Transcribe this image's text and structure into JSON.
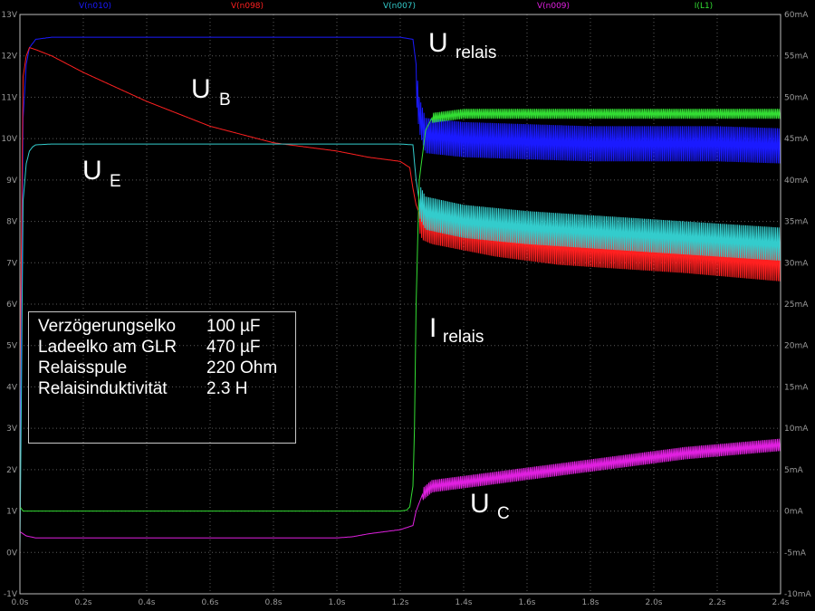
{
  "chart_data": {
    "type": "line",
    "title": "",
    "xlabel": "",
    "ylabel": "",
    "xlim": [
      0,
      2.4
    ],
    "ylim": [
      -1,
      13
    ],
    "y2lim": [
      -10,
      60
    ],
    "x_ticks": [
      "0.0s",
      "0.2s",
      "0.4s",
      "0.6s",
      "0.8s",
      "1.0s",
      "1.2s",
      "1.4s",
      "1.6s",
      "1.8s",
      "2.0s",
      "2.2s",
      "2.4s"
    ],
    "y_ticks": [
      "-1V",
      "0V",
      "1V",
      "2V",
      "3V",
      "4V",
      "5V",
      "6V",
      "7V",
      "8V",
      "9V",
      "10V",
      "11V",
      "12V",
      "13V"
    ],
    "y2_ticks": [
      "-10mA",
      "-5mA",
      "0mA",
      "5mA",
      "10mA",
      "15mA",
      "20mA",
      "25mA",
      "30mA",
      "35mA",
      "40mA",
      "45mA",
      "50mA",
      "55mA",
      "60mA"
    ],
    "grid": true,
    "legend_header": [
      "V(n010)",
      "V(n098)",
      "V(n007)",
      "V(n009)",
      "I(L1)"
    ],
    "series": [
      {
        "name": "V(n010)",
        "color": "#1a1aff",
        "axis": "left",
        "x": [
          0,
          0.01,
          0.02,
          0.03,
          0.05,
          0.1,
          0.3,
          0.6,
          1.0,
          1.2,
          1.24,
          1.25,
          1.26,
          1.28,
          1.4,
          1.6,
          1.8,
          2.0,
          2.2,
          2.4
        ],
        "y": [
          1.0,
          10.5,
          11.8,
          12.2,
          12.4,
          12.45,
          12.45,
          12.45,
          12.45,
          12.45,
          12.4,
          11.8,
          11.0,
          10.5,
          10.4,
          10.35,
          10.3,
          10.3,
          10.3,
          10.25
        ],
        "ripple_after": 1.25,
        "ripple_min": [
          10.0,
          10.0,
          10.0,
          10.0,
          10.0,
          10.0
        ],
        "ripple_max_offset": 0.85
      },
      {
        "name": "V(n098)",
        "color": "#ff2020",
        "axis": "left",
        "x": [
          0,
          0.01,
          0.02,
          0.03,
          0.05,
          0.1,
          0.2,
          0.4,
          0.6,
          0.8,
          1.0,
          1.1,
          1.2,
          1.23,
          1.24,
          1.25,
          1.26,
          1.27,
          1.3,
          1.5,
          1.7,
          1.9,
          2.1,
          2.4
        ],
        "y": [
          4.0,
          11.5,
          12.0,
          12.2,
          12.15,
          12.0,
          11.6,
          10.9,
          10.3,
          9.9,
          9.7,
          9.55,
          9.45,
          9.3,
          8.8,
          8.4,
          8.2,
          8.0,
          7.9,
          7.6,
          7.4,
          7.3,
          7.2,
          7.0
        ],
        "ripple_after": 1.26,
        "ripple_amp": 0.45
      },
      {
        "name": "V(n007)",
        "color": "#33cccc",
        "axis": "left",
        "x": [
          0,
          0.01,
          0.02,
          0.03,
          0.04,
          0.05,
          0.1,
          0.3,
          0.6,
          1.0,
          1.2,
          1.24,
          1.25,
          1.26,
          1.28,
          1.4,
          1.6,
          1.8,
          2.0,
          2.2,
          2.4
        ],
        "y": [
          0.0,
          8.5,
          9.4,
          9.7,
          9.8,
          9.85,
          9.87,
          9.87,
          9.87,
          9.87,
          9.87,
          9.85,
          9.0,
          8.5,
          8.2,
          8.0,
          7.85,
          7.75,
          7.65,
          7.55,
          7.45
        ],
        "ripple_after": 1.26,
        "ripple_amp": 0.4
      },
      {
        "name": "V(n009)",
        "color": "#e020e0",
        "axis": "left",
        "x": [
          0,
          0.01,
          0.02,
          0.05,
          0.1,
          0.4,
          0.8,
          1.0,
          1.05,
          1.1,
          1.2,
          1.24,
          1.25,
          1.26,
          1.27,
          1.3,
          1.5,
          1.7,
          1.9,
          2.1,
          2.4
        ],
        "y": [
          0.5,
          0.45,
          0.4,
          0.35,
          0.35,
          0.35,
          0.35,
          0.35,
          0.38,
          0.45,
          0.55,
          0.65,
          1.0,
          1.2,
          1.4,
          1.6,
          1.8,
          2.0,
          2.2,
          2.4,
          2.6
        ],
        "ripple_after": 1.27,
        "ripple_amp": 0.15
      },
      {
        "name": "I(L1)",
        "color": "#33dd33",
        "axis": "right",
        "x": [
          0,
          0.01,
          0.02,
          0.1,
          0.6,
          1.0,
          1.2,
          1.22,
          1.23,
          1.24,
          1.245,
          1.25,
          1.26,
          1.28,
          1.3,
          1.4,
          1.6,
          1.8,
          2.0,
          2.2,
          2.4
        ],
        "y": [
          0.5,
          0.0,
          0.0,
          0.0,
          0.0,
          0.0,
          0.0,
          0.1,
          0.5,
          3.0,
          10.0,
          25.0,
          40.0,
          46.0,
          47.5,
          48.0,
          48.0,
          48.0,
          48.0,
          48.0,
          48.0
        ],
        "ripple_after": 1.3,
        "ripple_amp": 0.6
      }
    ]
  },
  "annotations": [
    {
      "main": "U",
      "sub": "relais"
    },
    {
      "main": "U",
      "sub": "B"
    },
    {
      "main": "U",
      "sub": "E"
    },
    {
      "main": "I",
      "sub": "relais"
    },
    {
      "main": "U",
      "sub": "C"
    }
  ],
  "info_box": {
    "rows": [
      {
        "label": "Verzögerungselko",
        "value": "100 µF"
      },
      {
        "label": "Ladeelko am GLR",
        "value": "470 µF"
      },
      {
        "label": "Relaisspule",
        "value": "220 Ohm"
      },
      {
        "label": "Relaisinduktivität",
        "value": "2.3 H"
      }
    ]
  }
}
